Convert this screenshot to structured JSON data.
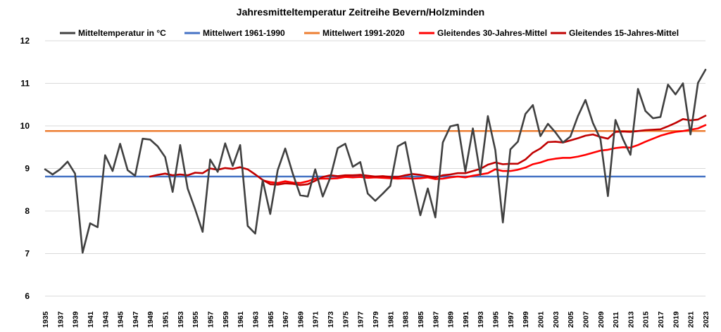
{
  "chart_data": {
    "type": "line",
    "title": "Jahresmitteltemperatur Zeitreihe Bevern/Holzminden",
    "xlabel": "",
    "ylabel": "",
    "ylim": [
      6,
      12
    ],
    "yticks": [
      6,
      7,
      8,
      9,
      10,
      11,
      12
    ],
    "xlim": [
      1935,
      2023
    ],
    "xticks": [
      1935,
      1937,
      1939,
      1941,
      1943,
      1945,
      1947,
      1949,
      1951,
      1953,
      1955,
      1957,
      1959,
      1961,
      1963,
      1965,
      1967,
      1969,
      1971,
      1973,
      1975,
      1977,
      1979,
      1981,
      1983,
      1985,
      1987,
      1989,
      1991,
      1993,
      1995,
      1997,
      1999,
      2001,
      2003,
      2005,
      2007,
      2009,
      2011,
      2013,
      2015,
      2017,
      2019,
      2021,
      2023
    ],
    "grid": true,
    "legend_position": "top",
    "series": [
      {
        "name": "Mitteltemperatur in °C",
        "color": "#404040",
        "kind": "line",
        "x": [
          1935,
          1936,
          1937,
          1938,
          1939,
          1940,
          1941,
          1942,
          1943,
          1944,
          1945,
          1946,
          1947,
          1948,
          1949,
          1950,
          1951,
          1952,
          1953,
          1954,
          1955,
          1956,
          1957,
          1958,
          1959,
          1960,
          1961,
          1962,
          1963,
          1964,
          1965,
          1966,
          1967,
          1968,
          1969,
          1970,
          1971,
          1972,
          1973,
          1974,
          1975,
          1976,
          1977,
          1978,
          1979,
          1980,
          1981,
          1982,
          1983,
          1984,
          1985,
          1986,
          1987,
          1988,
          1989,
          1990,
          1991,
          1992,
          1993,
          1994,
          1995,
          1996,
          1997,
          1998,
          1999,
          2000,
          2001,
          2002,
          2003,
          2004,
          2005,
          2006,
          2007,
          2008,
          2009,
          2010,
          2011,
          2012,
          2013,
          2014,
          2015,
          2016,
          2017,
          2018,
          2019,
          2020,
          2021,
          2022,
          2023
        ],
        "values": [
          8.98,
          8.86,
          8.98,
          9.16,
          8.88,
          7.02,
          7.71,
          7.62,
          9.31,
          8.94,
          9.58,
          8.96,
          8.83,
          9.7,
          9.68,
          9.52,
          9.27,
          8.45,
          9.55,
          8.53,
          8.04,
          7.51,
          9.21,
          8.92,
          9.59,
          9.06,
          9.55,
          7.65,
          7.47,
          8.72,
          7.93,
          8.96,
          9.47,
          8.88,
          8.37,
          8.34,
          8.98,
          8.34,
          8.78,
          9.48,
          9.58,
          9.04,
          9.15,
          8.41,
          8.24,
          8.41,
          8.59,
          9.52,
          9.62,
          8.71,
          7.9,
          8.53,
          7.85,
          9.61,
          9.99,
          10.03,
          8.93,
          9.94,
          8.85,
          10.23,
          9.43,
          7.73,
          9.45,
          9.63,
          10.28,
          10.49,
          9.76,
          10.05,
          9.85,
          9.61,
          9.75,
          10.23,
          10.61,
          10.07,
          9.69,
          8.35,
          10.14,
          9.69,
          9.32,
          10.87,
          10.35,
          10.18,
          10.21,
          10.97,
          10.74,
          11.0,
          9.8,
          11.01,
          11.32
        ]
      },
      {
        "name": "Mittelwert 1961-1990",
        "color": "#4472c4",
        "kind": "hline",
        "value": 8.81
      },
      {
        "name": "Mittelwert 1991-2020",
        "color": "#ed7d31",
        "kind": "hline",
        "value": 9.88
      },
      {
        "name": "Gleitendes 30-Jahres-Mittel",
        "color": "#ff0000",
        "kind": "line",
        "x": [
          1964,
          1965,
          1966,
          1967,
          1968,
          1969,
          1970,
          1971,
          1972,
          1973,
          1974,
          1975,
          1976,
          1977,
          1978,
          1979,
          1980,
          1981,
          1982,
          1983,
          1984,
          1985,
          1986,
          1987,
          1988,
          1989,
          1990,
          1991,
          1992,
          1993,
          1994,
          1995,
          1996,
          1997,
          1998,
          1999,
          2000,
          2001,
          2002,
          2003,
          2004,
          2005,
          2006,
          2007,
          2008,
          2009,
          2010,
          2011,
          2012,
          2013,
          2014,
          2015,
          2016,
          2017,
          2018,
          2019,
          2020,
          2021,
          2022,
          2023
        ],
        "values": [
          8.72,
          8.68,
          8.66,
          8.7,
          8.67,
          8.66,
          8.7,
          8.76,
          8.76,
          8.76,
          8.77,
          8.8,
          8.79,
          8.8,
          8.78,
          8.79,
          8.78,
          8.77,
          8.76,
          8.77,
          8.76,
          8.77,
          8.79,
          8.75,
          8.76,
          8.79,
          8.81,
          8.79,
          8.83,
          8.86,
          8.89,
          8.98,
          8.94,
          8.94,
          8.97,
          9.02,
          9.1,
          9.14,
          9.2,
          9.23,
          9.25,
          9.25,
          9.28,
          9.32,
          9.37,
          9.42,
          9.44,
          9.48,
          9.5,
          9.49,
          9.55,
          9.63,
          9.7,
          9.77,
          9.82,
          9.86,
          9.88,
          9.91,
          9.94,
          10.02
        ]
      },
      {
        "name": "Gleitendes 15-Jahres-Mittel",
        "color": "#c00000",
        "kind": "line",
        "x": [
          1949,
          1950,
          1951,
          1952,
          1953,
          1954,
          1955,
          1956,
          1957,
          1958,
          1959,
          1960,
          1961,
          1962,
          1963,
          1964,
          1965,
          1966,
          1967,
          1968,
          1969,
          1970,
          1971,
          1972,
          1973,
          1974,
          1975,
          1976,
          1977,
          1978,
          1979,
          1980,
          1981,
          1982,
          1983,
          1984,
          1985,
          1986,
          1987,
          1988,
          1989,
          1990,
          1991,
          1992,
          1993,
          1994,
          1995,
          1996,
          1997,
          1998,
          1999,
          2000,
          2001,
          2002,
          2003,
          2004,
          2005,
          2006,
          2007,
          2008,
          2009,
          2010,
          2011,
          2012,
          2013,
          2014,
          2015,
          2016,
          2017,
          2018,
          2019,
          2020,
          2021,
          2022,
          2023
        ],
        "values": [
          8.81,
          8.85,
          8.88,
          8.84,
          8.86,
          8.84,
          8.9,
          8.89,
          9.0,
          8.97,
          9.01,
          8.99,
          9.03,
          8.98,
          8.86,
          8.73,
          8.63,
          8.62,
          8.65,
          8.64,
          8.61,
          8.63,
          8.71,
          8.8,
          8.84,
          8.82,
          8.84,
          8.84,
          8.85,
          8.83,
          8.81,
          8.82,
          8.8,
          8.8,
          8.84,
          8.87,
          8.85,
          8.82,
          8.79,
          8.84,
          8.86,
          8.89,
          8.89,
          8.94,
          8.99,
          9.09,
          9.14,
          9.1,
          9.11,
          9.11,
          9.21,
          9.37,
          9.47,
          9.62,
          9.63,
          9.61,
          9.66,
          9.71,
          9.77,
          9.8,
          9.74,
          9.7,
          9.86,
          9.87,
          9.86,
          9.88,
          9.9,
          9.91,
          9.92,
          9.99,
          10.07,
          10.16,
          10.13,
          10.15,
          10.24
        ]
      }
    ]
  }
}
